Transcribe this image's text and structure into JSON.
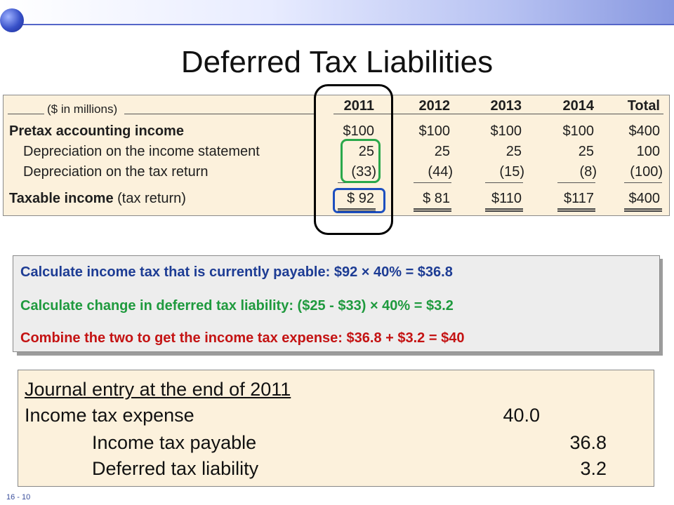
{
  "slide": {
    "title": "Deferred Tax Liabilities",
    "number": "16 - 10"
  },
  "table": {
    "units": "($ in millions)",
    "years": [
      "2011",
      "2012",
      "2013",
      "2014",
      "Total"
    ],
    "rows": [
      {
        "label": "Pretax accounting income",
        "values": [
          "$100",
          "$100",
          "$100",
          "$100",
          "$400"
        ]
      },
      {
        "label": "Depreciation on the income statement",
        "values": [
          "25",
          "25",
          "25",
          "25",
          "100"
        ]
      },
      {
        "label": "Depreciation on the tax return",
        "values": [
          "(33)",
          "(44)",
          "(15)",
          "(8)",
          "(100)"
        ]
      },
      {
        "label_bold": "Taxable income",
        "label_rest": "(tax return)",
        "values": [
          "$ 92",
          "$ 81",
          "$110",
          "$117",
          "$400"
        ]
      }
    ]
  },
  "calculations": {
    "line1": "Calculate income tax that is currently payable:  $92 × 40% = $36.8",
    "line2": "Calculate change in deferred tax liability: ($25 - $33) × 40% = $3.2",
    "line3": "Combine the two to get the income tax expense: $36.8 + $3.2 = $40",
    "colors": {
      "line1": "#1d3c94",
      "line2": "#1f9a3e",
      "line3": "#c41313"
    }
  },
  "journal": {
    "title": "Journal entry at the end of 2011",
    "entries": [
      {
        "account": "Income tax expense",
        "debit": "40.0"
      },
      {
        "account": "Income tax payable",
        "credit": "36.8"
      },
      {
        "account": "Deferred tax liability",
        "credit": "3.2"
      }
    ]
  },
  "highlights": {
    "column_2011": "#000000",
    "depreciation_2011": "#2aa84a",
    "taxable_income_2011": "#1d4fbf"
  }
}
